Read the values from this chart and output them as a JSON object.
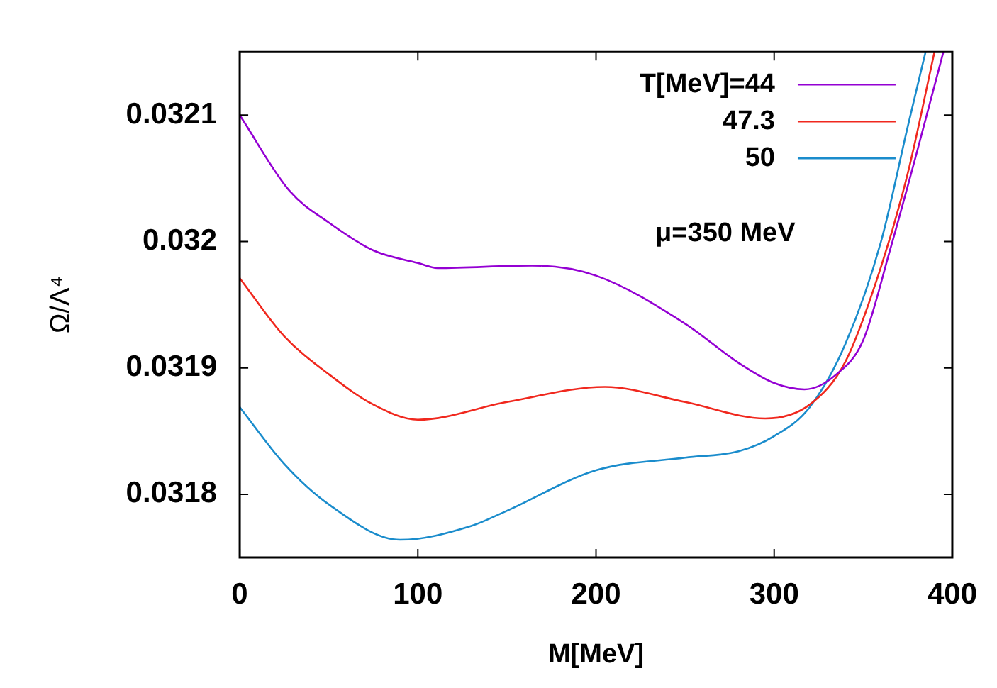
{
  "chart_data": {
    "type": "line",
    "xlabel": "M[MeV]",
    "ylabel": "Ω/Λ⁴",
    "xlim": [
      0,
      400
    ],
    "xticks": [
      0,
      100,
      200,
      300,
      400
    ],
    "ylim": [
      0.03175,
      0.03215
    ],
    "yticks": [
      0.0318,
      0.0319,
      0.032,
      0.0321
    ],
    "grid": false,
    "legend": "top right",
    "marker": "none",
    "line_style": "solid",
    "annotations": [
      "μ=350 MeV"
    ],
    "series": [
      {
        "name": "T[MeV]=44",
        "color": "#9400d3",
        "x": [
          0,
          28,
          50,
          75,
          100,
          111,
          164,
          200,
          250,
          280,
          300,
          317,
          335,
          350,
          365,
          380,
          395
        ],
        "values": [
          0.0321,
          0.03204,
          0.032015,
          0.031993,
          0.031983,
          0.031979,
          0.031981,
          0.031973,
          0.031935,
          0.031904,
          0.031888,
          0.031883,
          0.031895,
          0.031922,
          0.031993,
          0.03207,
          0.03215
        ]
      },
      {
        "name": "47.3",
        "color": "#f0281e",
        "x": [
          0,
          25,
          50,
          75,
          100,
          150,
          205,
          250,
          295,
          320,
          340,
          360,
          375,
          390
        ],
        "values": [
          0.031971,
          0.031925,
          0.031895,
          0.031871,
          0.031859,
          0.031873,
          0.031885,
          0.031873,
          0.03186,
          0.031871,
          0.031905,
          0.03198,
          0.032054,
          0.03215
        ]
      },
      {
        "name": "50",
        "color": "#1a8ccc",
        "x": [
          0,
          25,
          50,
          90,
          130,
          150,
          200,
          250,
          280,
          300,
          320,
          340,
          360,
          375,
          385
        ],
        "values": [
          0.031869,
          0.031824,
          0.031792,
          0.031764,
          0.031775,
          0.031787,
          0.031819,
          0.031829,
          0.031834,
          0.031846,
          0.031869,
          0.031919,
          0.032,
          0.032091,
          0.03215
        ]
      }
    ]
  }
}
